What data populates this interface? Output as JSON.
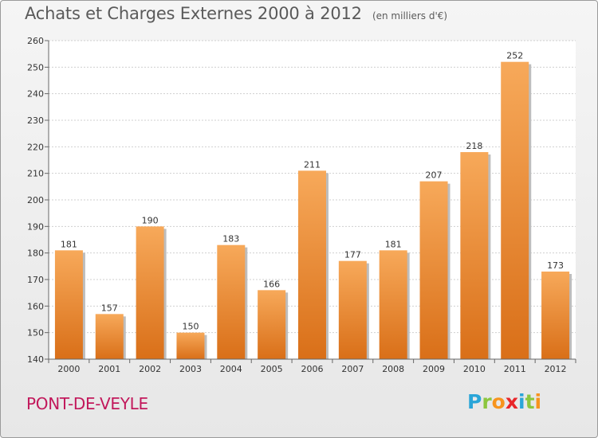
{
  "title": "Achats et Charges Externes 2000 à 2012",
  "subtitle": "(en milliers d'€)",
  "town": "PONT-DE-VEYLE",
  "logo": {
    "letters": [
      "P",
      "r",
      "o",
      "x",
      "i",
      "t",
      "i"
    ],
    "colors": [
      "#2aa5d8",
      "#8cc63f",
      "#f7941d",
      "#e8262a",
      "#2aa5d8",
      "#8cc63f",
      "#f7941d"
    ]
  },
  "colors": {
    "bar_light": "#f7a95a",
    "bar_dark": "#d96f18",
    "town_text": "#c2185b"
  },
  "chart_data": {
    "type": "bar",
    "title": "Achats et Charges Externes 2000 à 2012",
    "categories": [
      "2000",
      "2001",
      "2002",
      "2003",
      "2004",
      "2005",
      "2006",
      "2007",
      "2008",
      "2009",
      "2010",
      "2011",
      "2012"
    ],
    "values": [
      181,
      157,
      190,
      150,
      183,
      166,
      211,
      177,
      181,
      207,
      218,
      252,
      173
    ],
    "ylim": [
      140,
      260
    ],
    "yticks": [
      140,
      150,
      160,
      170,
      180,
      190,
      200,
      210,
      220,
      230,
      240,
      250,
      260
    ],
    "grid": true
  }
}
